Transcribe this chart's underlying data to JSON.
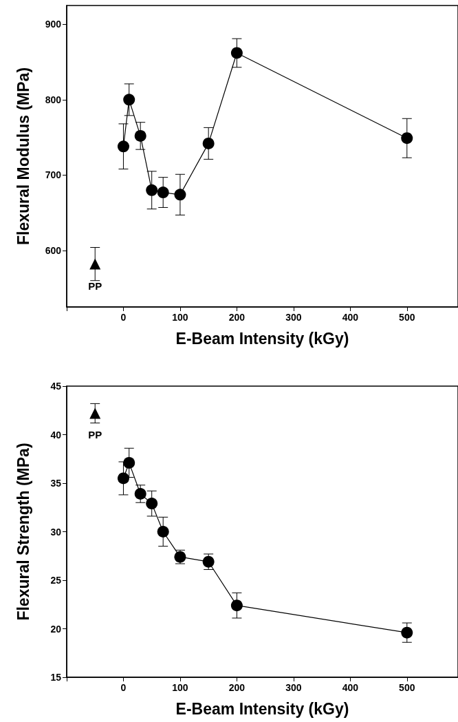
{
  "chart_data": [
    {
      "type": "line",
      "xlabel": "E-Beam Intensity (kGy)",
      "ylabel": "Flexural Modulus (MPa)",
      "xlim": [
        -100,
        590
      ],
      "xticks": [
        {
          "value": -100,
          "label": null
        },
        0,
        100,
        200,
        300,
        400,
        500
      ],
      "ylim": [
        525,
        925
      ],
      "yticks": [
        600,
        700,
        800,
        900
      ],
      "grid": false,
      "series": [
        {
          "color": "#000000",
          "marker": "circle",
          "line_style": "solid",
          "x": [
            0,
            10,
            30,
            50,
            70,
            100,
            150,
            200,
            500
          ],
          "values": [
            738,
            800,
            752,
            680,
            677,
            674,
            742,
            862,
            749
          ],
          "errors": [
            30,
            21,
            18,
            25,
            20,
            27,
            21,
            19,
            26
          ]
        },
        {
          "type": "scatter",
          "color": "#000000",
          "marker": "triangle",
          "x": [
            -50
          ],
          "values": [
            582
          ],
          "errors": [
            22
          ]
        }
      ],
      "annotations": [
        {
          "text": "PP",
          "x": -50,
          "y": 582
        }
      ]
    },
    {
      "type": "line",
      "xlabel": "E-Beam Intensity (kGy)",
      "ylabel": "Flexural Strength (MPa)",
      "xlim": [
        -100,
        590
      ],
      "xticks": [
        {
          "value": -100,
          "label": null
        },
        0,
        100,
        200,
        300,
        400,
        500
      ],
      "ylim": [
        15,
        45
      ],
      "yticks": [
        15,
        20,
        25,
        30,
        35,
        40,
        45
      ],
      "grid": false,
      "series": [
        {
          "color": "#000000",
          "marker": "circle",
          "line_style": "solid",
          "x": [
            0,
            10,
            30,
            50,
            70,
            100,
            150,
            200,
            500
          ],
          "values": [
            35.5,
            37.1,
            33.9,
            32.9,
            30.0,
            27.4,
            26.9,
            22.4,
            19.6
          ],
          "errors": [
            1.7,
            1.5,
            0.9,
            1.3,
            1.5,
            0.7,
            0.8,
            1.3,
            1.0
          ]
        },
        {
          "type": "scatter",
          "color": "#000000",
          "marker": "triangle",
          "x": [
            -50
          ],
          "values": [
            42.2
          ],
          "errors": [
            1.0
          ]
        }
      ],
      "annotations": [
        {
          "text": "PP",
          "x": -50,
          "y": 42.2
        }
      ]
    }
  ]
}
